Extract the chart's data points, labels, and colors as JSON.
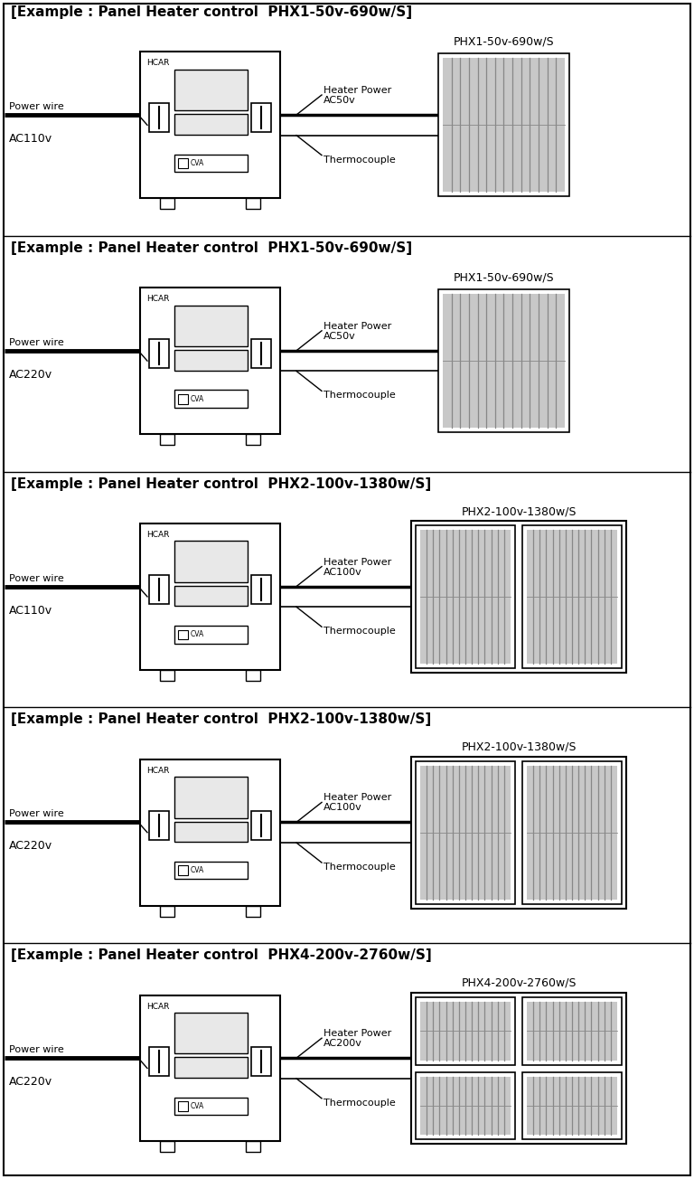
{
  "fig_width": 7.68,
  "fig_height": 13.04,
  "sections": [
    {
      "title": "[Example : Panel Heater control  PHX1-50v-690w/S]",
      "power_label1": "Power wire",
      "power_label2": "AC110v",
      "heater_power1": "Heater Power",
      "heater_power2": "AC50v",
      "thermocouple": "Thermocouple",
      "heater_label": "PHX1-50v-690w/S",
      "num_heaters": 1
    },
    {
      "title": "[Example : Panel Heater control  PHX1-50v-690w/S]",
      "power_label1": "Power wire",
      "power_label2": "AC220v",
      "heater_power1": "Heater Power",
      "heater_power2": "AC50v",
      "thermocouple": "Thermocouple",
      "heater_label": "PHX1-50v-690w/S",
      "num_heaters": 1
    },
    {
      "title": "[Example : Panel Heater control  PHX2-100v-1380w/S]",
      "power_label1": "Power wire",
      "power_label2": "AC110v",
      "heater_power1": "Heater Power",
      "heater_power2": "AC100v",
      "thermocouple": "Thermocouple",
      "heater_label": "PHX2-100v-1380w/S",
      "num_heaters": 2
    },
    {
      "title": "[Example : Panel Heater control  PHX2-100v-1380w/S]",
      "power_label1": "Power wire",
      "power_label2": "AC220v",
      "heater_power1": "Heater Power",
      "heater_power2": "AC100v",
      "thermocouple": "Thermocouple",
      "heater_label": "PHX2-100v-1380w/S",
      "num_heaters": 2
    },
    {
      "title": "[Example : Panel Heater control  PHX4-200v-2760w/S]",
      "power_label1": "Power wire",
      "power_label2": "AC220v",
      "heater_power1": "Heater Power",
      "heater_power2": "AC200v",
      "thermocouple": "Thermocouple",
      "heater_label": "PHX4-200v-2760w/S",
      "num_heaters": 4
    }
  ]
}
